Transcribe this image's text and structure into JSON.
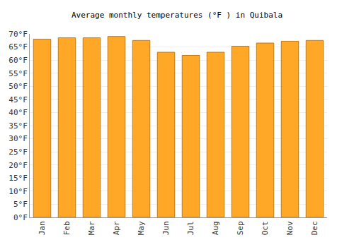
{
  "chart_data": {
    "type": "bar",
    "title": "Average monthly temperatures (°F ) in Quibala",
    "categories": [
      "Jan",
      "Feb",
      "Mar",
      "Apr",
      "May",
      "Jun",
      "Jul",
      "Aug",
      "Sep",
      "Oct",
      "Nov",
      "Dec"
    ],
    "values": [
      68,
      68.5,
      68.5,
      69,
      67.5,
      63,
      61.8,
      63,
      65.3,
      66.5,
      67.2,
      67.5
    ],
    "color": "#ffa726",
    "ylim": [
      0,
      70
    ],
    "yticks": [
      {
        "value": 0,
        "label": "0°F"
      },
      {
        "value": 5,
        "label": "5°F"
      },
      {
        "value": 10,
        "label": "10°F"
      },
      {
        "value": 15,
        "label": "15°F"
      },
      {
        "value": 20,
        "label": "20°F"
      },
      {
        "value": 25,
        "label": "25°F"
      },
      {
        "value": 30,
        "label": "30°F"
      },
      {
        "value": 35,
        "label": "35°F"
      },
      {
        "value": 40,
        "label": "40°F"
      },
      {
        "value": 45,
        "label": "45°F"
      },
      {
        "value": 50,
        "label": "50°F"
      },
      {
        "value": 55,
        "label": "55°F"
      },
      {
        "value": 60,
        "label": "60°F"
      },
      {
        "value": 65,
        "label": "65°F"
      },
      {
        "value": 70,
        "label": "70°F"
      }
    ],
    "grid": true
  }
}
